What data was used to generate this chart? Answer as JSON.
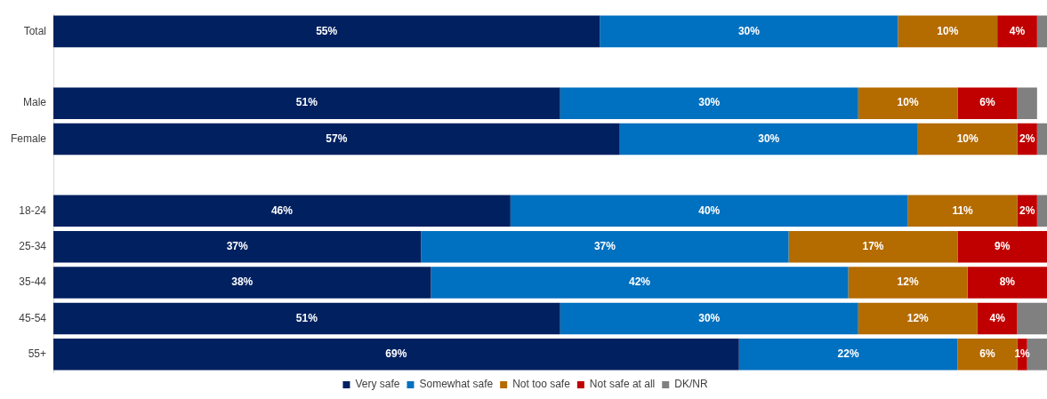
{
  "chart_data": {
    "type": "bar",
    "orientation": "horizontal",
    "stacked": true,
    "categories": [
      "Total",
      null,
      "Male",
      "Female",
      null,
      "18-24",
      "25-34",
      "35-44",
      "45-54",
      "55+"
    ],
    "series": [
      {
        "name": "Very safe",
        "color": "#002060",
        "values": [
          55,
          null,
          51,
          57,
          null,
          46,
          37,
          38,
          51,
          69
        ],
        "value_labels": [
          "55%",
          null,
          "51%",
          "57%",
          null,
          "46%",
          "37%",
          "38%",
          "51%",
          "69%"
        ]
      },
      {
        "name": "Somewhat safe",
        "color": "#0070c0",
        "values": [
          30,
          null,
          30,
          30,
          null,
          40,
          37,
          42,
          30,
          22
        ],
        "value_labels": [
          "30%",
          null,
          "30%",
          "30%",
          null,
          "40%",
          "37%",
          "42%",
          "30%",
          "22%"
        ]
      },
      {
        "name": "Not too safe",
        "color": "#b46b00",
        "values": [
          10,
          null,
          10,
          10,
          null,
          11,
          17,
          12,
          12,
          6
        ],
        "value_labels": [
          "10%",
          null,
          "10%",
          "10%",
          null,
          "11%",
          "17%",
          "12%",
          "12%",
          "6%"
        ]
      },
      {
        "name": "Not safe at all",
        "color": "#c00000",
        "values": [
          4,
          null,
          6,
          2,
          null,
          2,
          9,
          8,
          4,
          1
        ],
        "value_labels": [
          "4%",
          null,
          "6%",
          "2%",
          null,
          "2%",
          "9%",
          "8%",
          "4%",
          "1%"
        ]
      },
      {
        "name": "DK/NR",
        "color": "#808080",
        "values": [
          1,
          null,
          2,
          1,
          null,
          1,
          0,
          0,
          3,
          2
        ]
      }
    ],
    "xlim": [
      0,
      100
    ],
    "tick_labels": "y",
    "grid": false,
    "legend": "bottom"
  }
}
